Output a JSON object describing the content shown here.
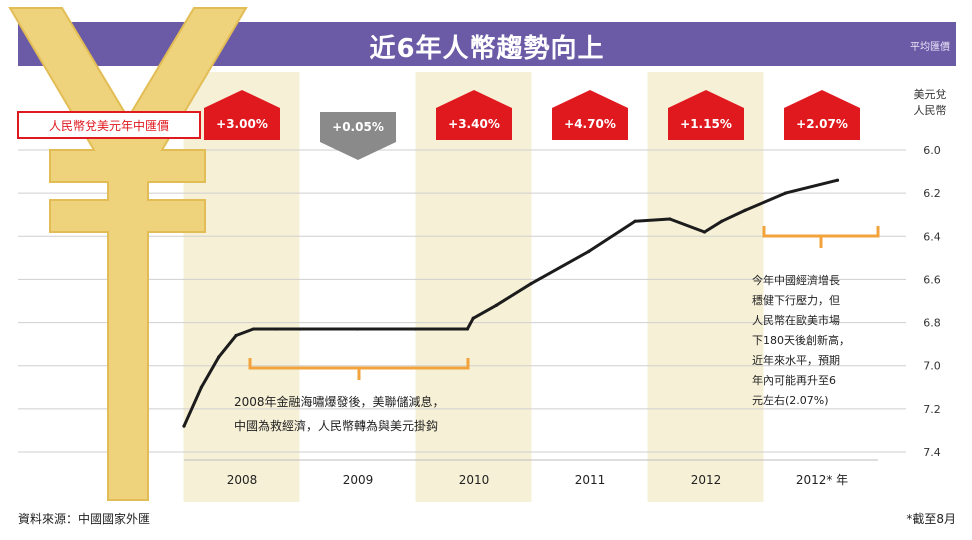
{
  "header": {
    "title": "近6年人幣趨勢向上",
    "unit_note": "平均匯價"
  },
  "legend_label": "人民幣兌美元年中匯價",
  "changes": [
    {
      "label": "+3.00%",
      "dir": "up"
    },
    {
      "label": "+0.05%",
      "dir": "down"
    },
    {
      "label": "+3.40%",
      "dir": "up"
    },
    {
      "label": "+4.70%",
      "dir": "up"
    },
    {
      "label": "+1.15%",
      "dir": "up"
    },
    {
      "label": "+2.07%",
      "dir": "up"
    }
  ],
  "axis_unit": [
    "美元兌",
    "人民幣"
  ],
  "annotations": {
    "left": [
      "2008年金融海嘯爆發後，美聯儲減息，",
      "中國為救經濟，人民幣轉為與美元掛鈎"
    ],
    "right": [
      "今年中國經濟增長",
      "穩健下行壓力，但",
      "人民幣在歐美市場",
      "下180天後創新高，",
      "近年來水平，預期",
      "年內可能再升至6",
      "元左右(2.07%)"
    ]
  },
  "footer": {
    "source": "資料來源：中國國家外匯",
    "credit": "*截至8月"
  },
  "colors": {
    "title_bg": "#6b5aa6",
    "up": "#e0191f",
    "down": "#8a8a8a",
    "band": "#f6f0d6",
    "line": "#1c1c1c",
    "bracket": "#f3a33c",
    "yuan": "#efd37c"
  },
  "chart_data": {
    "type": "line",
    "title": "近6年人幣趨勢向上",
    "ylabel": "美元兌人民幣",
    "categories": [
      "2008",
      "2009",
      "2010",
      "2011",
      "2012",
      "2012* 年"
    ],
    "y_ticks": [
      6.0,
      6.2,
      6.4,
      6.6,
      6.8,
      7.0,
      7.2,
      7.4
    ],
    "ylim": [
      6.0,
      7.4
    ],
    "y_inverted": true,
    "grid": true,
    "series": [
      {
        "values": [
          {
            "x": 2008.0,
            "y": 7.28
          },
          {
            "x": 2008.15,
            "y": 7.1
          },
          {
            "x": 2008.3,
            "y": 6.96
          },
          {
            "x": 2008.45,
            "y": 6.86
          },
          {
            "x": 2008.6,
            "y": 6.83
          },
          {
            "x": 2008.8,
            "y": 6.83
          },
          {
            "x": 2009.0,
            "y": 6.83
          },
          {
            "x": 2009.5,
            "y": 6.83
          },
          {
            "x": 2010.0,
            "y": 6.83
          },
          {
            "x": 2010.45,
            "y": 6.83
          },
          {
            "x": 2010.5,
            "y": 6.78
          },
          {
            "x": 2010.7,
            "y": 6.72
          },
          {
            "x": 2011.0,
            "y": 6.62
          },
          {
            "x": 2011.5,
            "y": 6.47
          },
          {
            "x": 2011.9,
            "y": 6.33
          },
          {
            "x": 2012.2,
            "y": 6.32
          },
          {
            "x": 2012.5,
            "y": 6.38
          },
          {
            "x": 2012.65,
            "y": 6.33
          },
          {
            "x": 2012.85,
            "y": 6.28
          },
          {
            "x": 2013.2,
            "y": 6.2
          },
          {
            "x": 2013.65,
            "y": 6.14
          }
        ]
      }
    ]
  }
}
